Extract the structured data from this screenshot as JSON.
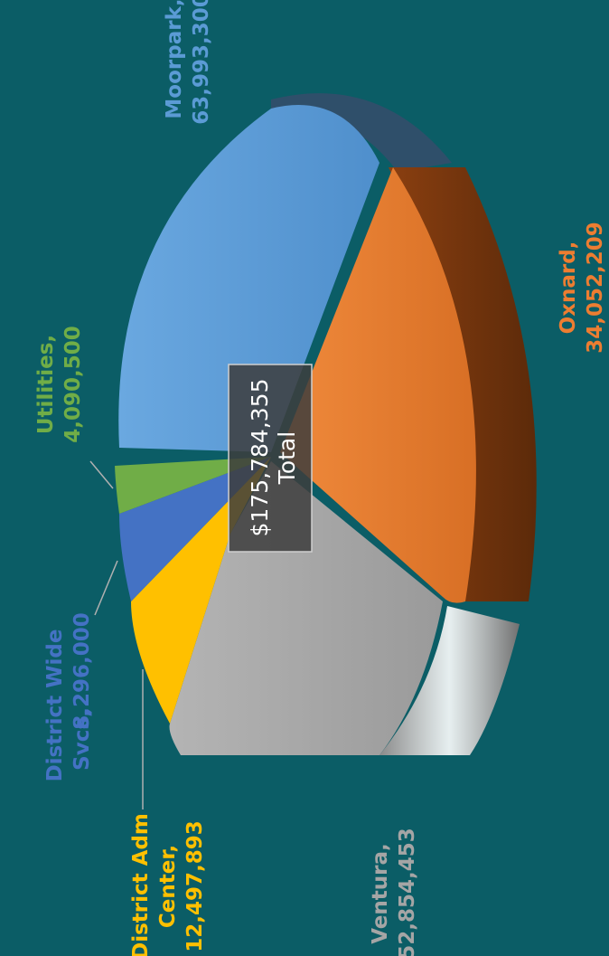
{
  "chart_data": {
    "type": "pie",
    "title": "",
    "center_label": {
      "value": "$175,784,355",
      "caption": "Total"
    },
    "slices": [
      {
        "name": "Moorpark,",
        "value_label": "63,993,300",
        "value": 63993300,
        "color": "#5b9bd5",
        "label_color": "#5b9bd5"
      },
      {
        "name": "Oxnard,",
        "value_label": "34,052,209",
        "value": 34052209,
        "color": "#ed7d31",
        "label_color": "#ed7d31"
      },
      {
        "name": "Ventura,",
        "value_label": "52,854,453",
        "value": 52854453,
        "color": "#a5a5a5",
        "label_color": "#a5a5a5"
      },
      {
        "name_line1": "District Adm",
        "name_line2": "Center,",
        "value_label": "12,497,893",
        "value": 12497893,
        "color": "#ffc000",
        "label_color": "#ffc000"
      },
      {
        "name_line1": "District Wide",
        "name_line2": "Svcs,",
        "value_label": "8,296,000",
        "value": 8296000,
        "color": "#4472c4",
        "label_color": "#4472c4"
      },
      {
        "name": "Utilities,",
        "value_label": "4,090,500",
        "value": 4090500,
        "color": "#70ad47",
        "label_color": "#70ad47"
      }
    ]
  }
}
